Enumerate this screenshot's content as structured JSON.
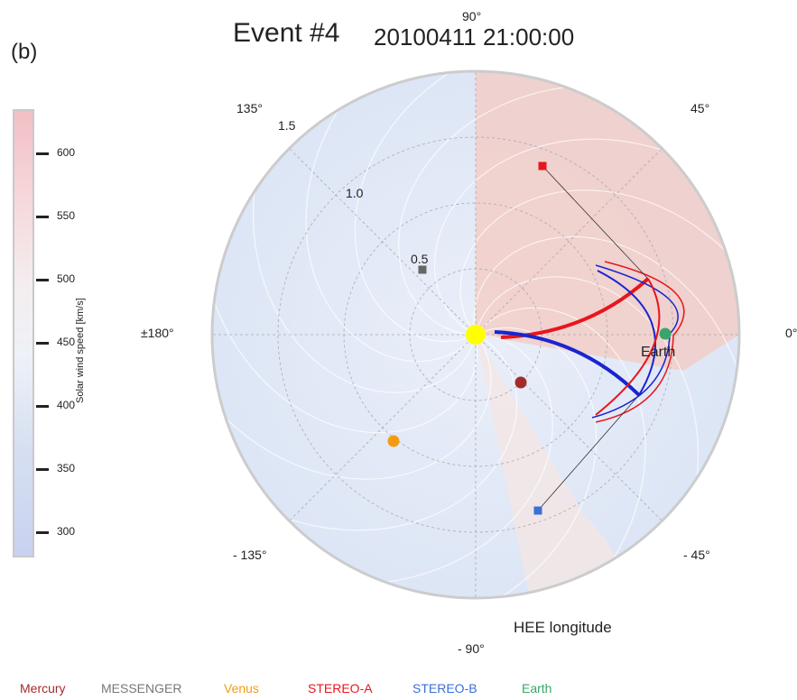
{
  "panel_label": "(b)",
  "title": "Event #4",
  "title_date": "20100411   21:00:00",
  "colorbar": {
    "title": "Solar wind speed [km/s]",
    "ticks": [
      "600",
      "550",
      "500",
      "450",
      "400",
      "350",
      "300"
    ],
    "range": [
      280,
      635
    ]
  },
  "chart_data": {
    "type": "polar",
    "title": "Event #4",
    "subtitle": "20100411   21:00:00",
    "xlabel": "HEE longitude",
    "angle_ticks": [
      "90°",
      "45°",
      "0°",
      "- 45°",
      "- 90°",
      "- 135°",
      "±180°",
      "135°"
    ],
    "radial_ticks": [
      "0.5",
      "1.0",
      "1.5"
    ],
    "rlim": [
      0,
      2.0
    ],
    "bodies": [
      {
        "name": "Sun",
        "lon": 0,
        "r": 0,
        "color": "#ffff00"
      },
      {
        "name": "Earth",
        "lon": 0,
        "r": 1.0,
        "color": "#3aa56a"
      },
      {
        "name": "Mercury",
        "lon": -70,
        "r": 0.38,
        "color": "#a52a2a"
      },
      {
        "name": "Venus",
        "lon": -130,
        "r": 0.71,
        "color": "#f39c12"
      },
      {
        "name": "MESSENGER",
        "lon": 135,
        "r": 0.45,
        "color": "#666666"
      },
      {
        "name": "STEREO-A",
        "lon": 67,
        "r": 1.0,
        "color": "#e8161c"
      },
      {
        "name": "STEREO-B",
        "lon": -70,
        "r": 1.05,
        "color": "#3a6fd8"
      }
    ],
    "annotations": [
      "Earth"
    ]
  },
  "legend": [
    {
      "name": "Mercury",
      "color": "#a52a2a"
    },
    {
      "name": "MESSENGER",
      "color": "#777777"
    },
    {
      "name": "Venus",
      "color": "#f39c12"
    },
    {
      "name": "STEREO-A",
      "color": "#e8161c"
    },
    {
      "name": "STEREO-B",
      "color": "#3a6fd8"
    },
    {
      "name": "Earth",
      "color": "#3aa56a"
    }
  ]
}
